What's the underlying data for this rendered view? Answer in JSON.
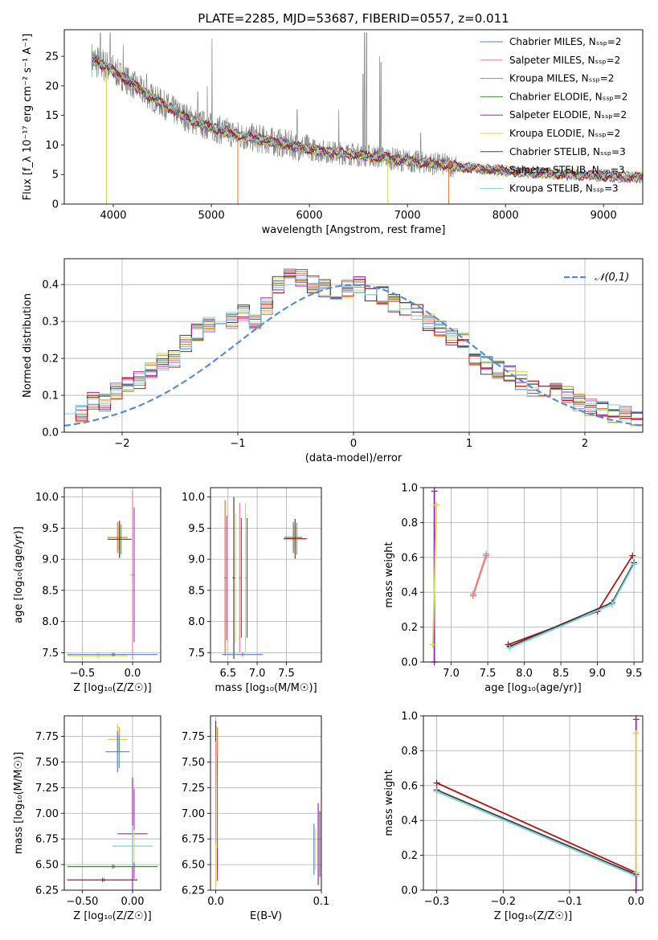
{
  "title": "PLATE=2285, MJD=53687, FIBERID=0557, z=0.011",
  "colors": {
    "ChabrierMILES": "#5b7fd6",
    "SalpeterMILES": "#f0829b",
    "KroupaMILES": "#e07b1c",
    "ChabrierELODIE": "#3f8e3f",
    "SalpeterELODIE": "#9e1fb8",
    "KroupaELODIE": "#d8d84a",
    "ChabrierSTELIB": "#404040",
    "SalpeterSTELIB": "#b01818",
    "KroupaSTELIB": "#7fd3df",
    "data": "#888888",
    "normal": "#5b8bd6",
    "grid": "#b0b0b0"
  },
  "chart_data": [
    {
      "type": "line",
      "name": "spectrum",
      "xlabel": "wavelength [Angstrom, rest frame]",
      "ylabel": "Flux [f_λ 10⁻¹⁷ erg cm⁻² s⁻¹ A⁻¹]",
      "xlim": [
        3500,
        9400
      ],
      "ylim": [
        0,
        29.5
      ],
      "xticks": [
        4000,
        5000,
        6000,
        7000,
        8000,
        9000
      ],
      "yticks": [
        0,
        5,
        10,
        15,
        20,
        25
      ],
      "legend_position": "top-right",
      "legend": [
        "Chabrier MILES, N_SSP=2",
        "Salpeter MILES, N_SSP=2",
        "Kroupa MILES, N_SSP=2",
        "Chabrier ELODIE, N_SSP=2",
        "Salpeter ELODIE, N_SSP=2",
        "Kroupa ELODIE, N_SSP=2",
        "Chabrier STELIB, N_SSP=3",
        "Salpeter STELIB, N_SSP=3",
        "Kroupa STELIB, N_SSP=3"
      ],
      "continuum_x": [
        3780,
        3900,
        4000,
        4100,
        4300,
        4500,
        4700,
        4900,
        5100,
        5300,
        5500,
        5800,
        6100,
        6400,
        6700,
        7000,
        7300,
        7600,
        8000,
        8400,
        8800,
        9200,
        9400
      ],
      "continuum_y": [
        24.5,
        23.5,
        22.5,
        21.5,
        19,
        17,
        15,
        13.5,
        12.5,
        11.5,
        11,
        10,
        9,
        8.5,
        8,
        7.3,
        6.8,
        6.2,
        5.6,
        5.2,
        4.9,
        4.6,
        4.5
      ]
    },
    {
      "type": "line",
      "name": "residual_histogram",
      "xlabel": "(data-model)/error",
      "ylabel": "Normed distribution",
      "xlim": [
        -2.5,
        2.5
      ],
      "ylim": [
        0,
        0.47
      ],
      "xticks": [
        -2,
        -1,
        0,
        1,
        2
      ],
      "yticks": [
        0.0,
        0.1,
        0.2,
        0.3,
        0.4
      ],
      "legend_position": "top-right",
      "legend": [
        "𝒩(0,1)"
      ],
      "bin_edges_start": -2.5,
      "bin_width": 0.1,
      "series_template": [
        0.075,
        0.05,
        0.085,
        0.08,
        0.115,
        0.13,
        0.14,
        0.165,
        0.19,
        0.2,
        0.24,
        0.27,
        0.29,
        0.3,
        0.3,
        0.32,
        0.3,
        0.34,
        0.4,
        0.43,
        0.42,
        0.4,
        0.39,
        0.38,
        0.39,
        0.4,
        0.38,
        0.37,
        0.35,
        0.34,
        0.33,
        0.3,
        0.28,
        0.26,
        0.25,
        0.2,
        0.18,
        0.17,
        0.16,
        0.14,
        0.12,
        0.11,
        0.11,
        0.1,
        0.08,
        0.07,
        0.06,
        0.05,
        0.045,
        0.04
      ]
    },
    {
      "type": "scatter",
      "name": "Z_vs_age",
      "xlabel": "Z [log₁₀(Z/Z☉)]",
      "ylabel": "age  [log₁₀(age/yr)]",
      "xlim": [
        -0.68,
        0.28
      ],
      "ylim": [
        7.35,
        10.15
      ],
      "xticks": [
        -0.5,
        0.0
      ],
      "yticks": [
        7.5,
        8.0,
        8.5,
        9.0,
        9.5,
        10.0
      ],
      "points": [
        {
          "x": -0.15,
          "y": 9.35,
          "xerr": 0.1,
          "yerr": 0.25
        },
        {
          "x": -0.13,
          "y": 9.32,
          "xerr": 0.12,
          "yerr": 0.3
        },
        {
          "x": 0.0,
          "y": 8.75,
          "xerr": 0.02,
          "yerr": 1.35
        },
        {
          "x": -0.35,
          "y": 7.45,
          "xerr": 0.3,
          "yerr": 0.05
        },
        {
          "x": -0.2,
          "y": 7.47,
          "xerr": 0.45,
          "yerr": 0.03
        }
      ]
    },
    {
      "type": "scatter",
      "name": "mass_vs_age",
      "xlabel": "mass [log₁₀(M/M☉)]",
      "ylabel": "",
      "xlim": [
        6.2,
        8.1
      ],
      "ylim": [
        7.35,
        10.15
      ],
      "xticks": [
        6.5,
        7.0,
        7.5
      ],
      "yticks": [
        7.5,
        8.0,
        8.5,
        9.0,
        9.5,
        10.0
      ],
      "points": [
        {
          "x": 7.62,
          "y": 9.35,
          "xerr": 0.15,
          "yerr": 0.25
        },
        {
          "x": 7.65,
          "y": 9.33,
          "xerr": 0.2,
          "yerr": 0.32
        },
        {
          "x": 6.45,
          "y": 8.7,
          "xerr": 0.02,
          "yerr": 1.25
        },
        {
          "x": 6.6,
          "y": 8.7,
          "xerr": 0.02,
          "yerr": 1.3
        },
        {
          "x": 6.7,
          "y": 8.7,
          "xerr": 0.02,
          "yerr": 1.2
        },
        {
          "x": 6.8,
          "y": 8.7,
          "xerr": 0.02,
          "yerr": 1.2
        },
        {
          "x": 6.75,
          "y": 7.47,
          "xerr": 0.35,
          "yerr": 0.03
        }
      ]
    },
    {
      "type": "line",
      "name": "age_vs_massweight",
      "xlabel": "age  [log₁₀(age/yr)]",
      "ylabel": "mass weight",
      "xlim": [
        6.62,
        9.62
      ],
      "ylim": [
        0,
        1
      ],
      "xticks": [
        7.0,
        7.5,
        8.0,
        8.5,
        9.0,
        9.5
      ],
      "yticks": [
        0.0,
        0.2,
        0.4,
        0.6,
        0.8,
        1.0
      ],
      "lines": [
        {
          "x": [
            7.78,
            9.0,
            9.48
          ],
          "y": [
            0.1,
            0.29,
            0.61
          ],
          "color": "SalpeterSTELIB"
        },
        {
          "x": [
            7.8,
            9.2,
            9.5
          ],
          "y": [
            0.09,
            0.34,
            0.57
          ],
          "color": "ChabrierSTELIB"
        },
        {
          "x": [
            7.8,
            9.2,
            9.5
          ],
          "y": [
            0.08,
            0.33,
            0.56
          ],
          "color": "KroupaSTELIB"
        },
        {
          "x": [
            7.3,
            7.48
          ],
          "y": [
            0.38,
            0.61
          ],
          "color": "KroupaMILES"
        },
        {
          "x": [
            7.3,
            7.48
          ],
          "y": [
            0.39,
            0.62
          ],
          "color": "SalpeterMILES"
        },
        {
          "x": [
            6.77,
            6.77
          ],
          "y": [
            0.0,
            0.98
          ],
          "color": "SalpeterELODIE"
        },
        {
          "x": [
            6.75,
            6.8
          ],
          "y": [
            0.1,
            0.9
          ],
          "color": "KroupaELODIE"
        }
      ]
    },
    {
      "type": "scatter",
      "name": "Z_vs_mass",
      "xlabel": "Z [log₁₀(Z/Z☉)]",
      "ylabel": "mass [log₁₀(M/M☉)]",
      "xlim": [
        -0.68,
        0.28
      ],
      "ylim": [
        6.25,
        7.95
      ],
      "xticks": [
        -0.5,
        0.0
      ],
      "yticks": [
        6.25,
        6.5,
        6.75,
        7.0,
        7.25,
        7.5,
        7.75
      ],
      "points": [
        {
          "x": -0.15,
          "y": 7.72,
          "xerr": 0.1,
          "yerr": 0.15
        },
        {
          "x": -0.15,
          "y": 7.6,
          "xerr": 0.12,
          "yerr": 0.2
        },
        {
          "x": 0.0,
          "y": 6.8,
          "xerr": 0.15,
          "yerr": 0.55
        },
        {
          "x": 0.0,
          "y": 6.68,
          "xerr": 0.2,
          "yerr": 0.2
        },
        {
          "x": -0.2,
          "y": 6.48,
          "xerr": 0.45,
          "yerr": 0.02
        },
        {
          "x": -0.3,
          "y": 6.35,
          "xerr": 0.35,
          "yerr": 0.02
        }
      ]
    },
    {
      "type": "scatter",
      "name": "EBV_vs_mass",
      "xlabel": "E(B-V)",
      "ylabel": "",
      "xlim": [
        -0.005,
        0.1
      ],
      "ylim": [
        6.25,
        7.95
      ],
      "xticks": [
        0.0,
        0.1
      ],
      "yticks": [
        6.25,
        6.5,
        6.75,
        7.0,
        7.25,
        7.5,
        7.75
      ],
      "points": [
        {
          "x": 0.0,
          "y": 7.6,
          "xerr": 0,
          "yerr": 0.3
        },
        {
          "x": 0.0,
          "y": 7.0,
          "xerr": 0,
          "yerr": 0.7
        },
        {
          "x": 0.0,
          "y": 6.5,
          "xerr": 0,
          "yerr": 0.2
        },
        {
          "x": 0.093,
          "y": 6.65,
          "xerr": 0,
          "yerr": 0.25
        },
        {
          "x": 0.097,
          "y": 6.7,
          "xerr": 0,
          "yerr": 0.4
        }
      ]
    },
    {
      "type": "line",
      "name": "Z_vs_massweight",
      "xlabel": "Z [log₁₀(Z/Z☉)]",
      "ylabel": "mass weight",
      "xlim": [
        -0.32,
        0.01
      ],
      "ylim": [
        0,
        1
      ],
      "xticks": [
        -0.3,
        -0.2,
        -0.1,
        0.0
      ],
      "yticks": [
        0.0,
        0.2,
        0.4,
        0.6,
        0.8,
        1.0
      ],
      "lines": [
        {
          "x": [
            -0.3,
            0.0
          ],
          "y": [
            0.615,
            0.1
          ],
          "color": "SalpeterSTELIB"
        },
        {
          "x": [
            -0.3,
            0.0
          ],
          "y": [
            0.575,
            0.09
          ],
          "color": "ChabrierSTELIB"
        },
        {
          "x": [
            -0.3,
            0.0
          ],
          "y": [
            0.565,
            0.08
          ],
          "color": "KroupaSTELIB"
        },
        {
          "x": [
            0.0,
            0.0
          ],
          "y": [
            0.0,
            0.98
          ],
          "color": "SalpeterELODIE"
        },
        {
          "x": [
            0.0,
            0.0
          ],
          "y": [
            0.1,
            0.9
          ],
          "color": "KroupaELODIE"
        }
      ]
    }
  ]
}
